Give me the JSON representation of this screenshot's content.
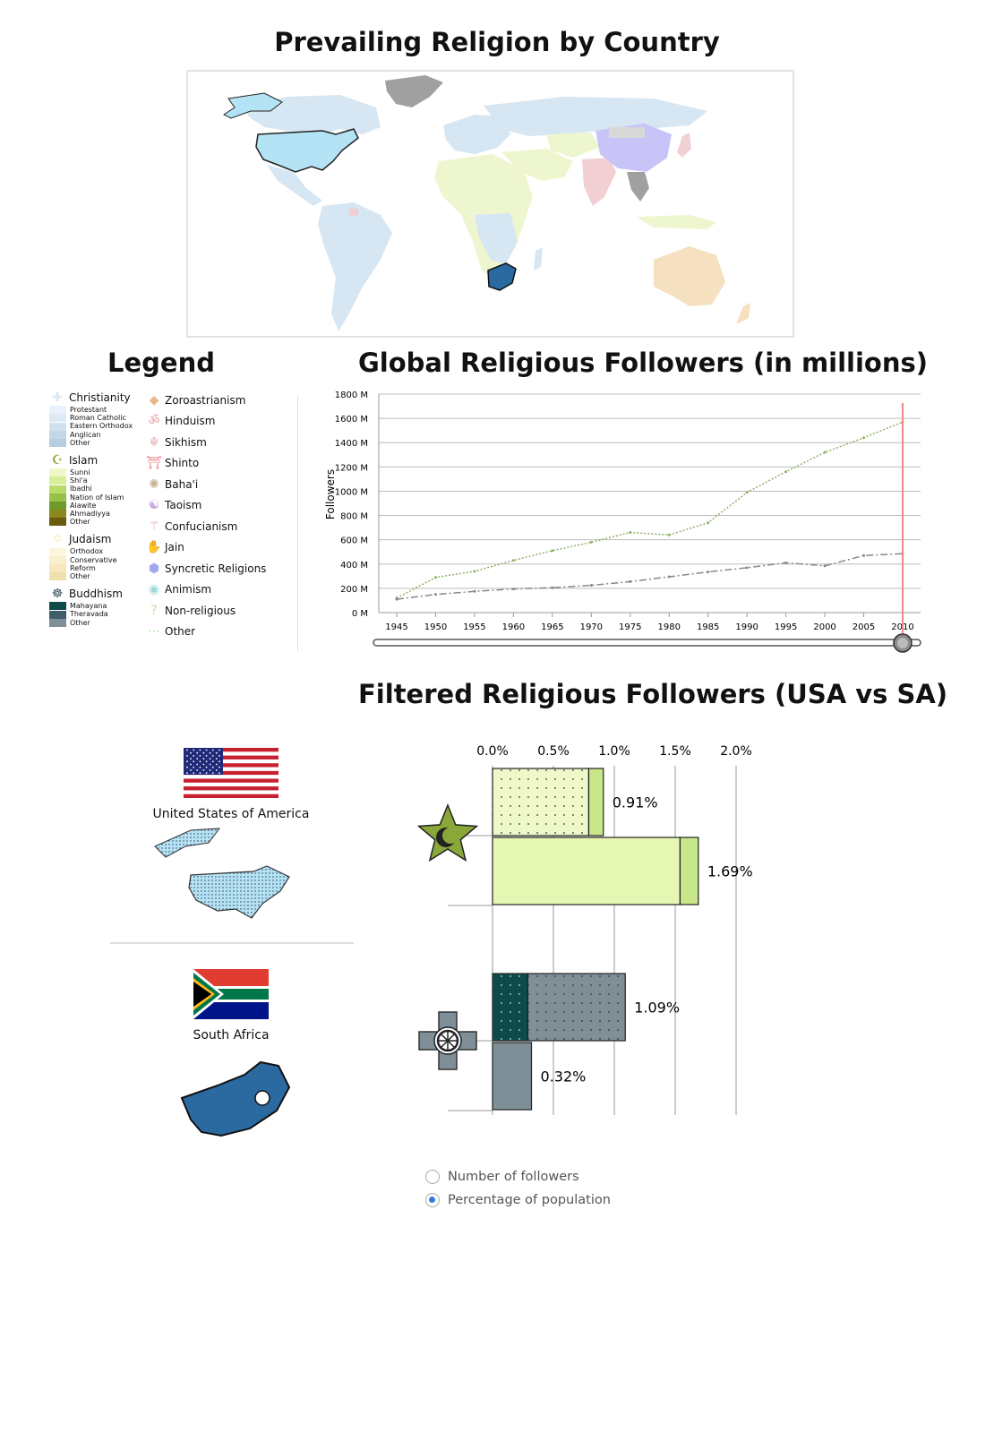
{
  "titles": {
    "map": "Prevailing Religion by Country",
    "legend": "Legend",
    "line_chart": "Global Religious Followers (in millions)",
    "filtered": "Filtered Religious Followers (USA vs SA)"
  },
  "legend": {
    "groups": [
      {
        "name": "Christianity",
        "icon": "cross-icon",
        "color": "#dbe7f2",
        "subs": [
          {
            "label": "Protestant",
            "color": "#eaf3fb"
          },
          {
            "label": "Roman Catholic",
            "color": "#dde9f4"
          },
          {
            "label": "Eastern Orthodox",
            "color": "#d0e0ee"
          },
          {
            "label": "Anglican",
            "color": "#c4d7e8"
          },
          {
            "label": "Other",
            "color": "#b8cde0"
          }
        ]
      },
      {
        "name": "Islam",
        "icon": "star-crescent-icon",
        "color": "#8aa83a",
        "subs": [
          {
            "label": "Sunni",
            "color": "#eef8c8"
          },
          {
            "label": "Shi'a",
            "color": "#d7ef9a"
          },
          {
            "label": "Ibadhi",
            "color": "#b8dc6a"
          },
          {
            "label": "Nation of Islam",
            "color": "#96c24a"
          },
          {
            "label": "Alawite",
            "color": "#6f9a2a"
          },
          {
            "label": "Ahmadiyya",
            "color": "#8a8a1a"
          },
          {
            "label": "Other",
            "color": "#6a5a10"
          }
        ]
      },
      {
        "name": "Judaism",
        "icon": "star-of-david-icon",
        "color": "#f6efc0",
        "subs": [
          {
            "label": "Orthodox",
            "color": "#fbf6dc"
          },
          {
            "label": "Conservative",
            "color": "#f8f0cd"
          },
          {
            "label": "Reform",
            "color": "#f4e8bc"
          },
          {
            "label": "Other",
            "color": "#f0e0ae"
          }
        ]
      },
      {
        "name": "Buddhism",
        "icon": "dharma-wheel-icon",
        "color": "#3a5560",
        "subs": [
          {
            "label": "Mahayana",
            "color": "#0f4a4a"
          },
          {
            "label": "Theravada",
            "color": "#3e5f68"
          },
          {
            "label": "Other",
            "color": "#7f8f98"
          }
        ]
      }
    ],
    "others": [
      {
        "name": "Zoroastrianism",
        "icon": "diamond-icon",
        "color": "#e8b88a"
      },
      {
        "name": "Hinduism",
        "icon": "om-icon",
        "color": "#e7a0a0"
      },
      {
        "name": "Sikhism",
        "icon": "khanda-icon",
        "color": "#e6b0b0"
      },
      {
        "name": "Shinto",
        "icon": "torii-icon",
        "color": "#f08080"
      },
      {
        "name": "Baha'i",
        "icon": "nine-star-icon",
        "color": "#c8b090"
      },
      {
        "name": "Taoism",
        "icon": "yin-yang-icon",
        "color": "#c8a8e0"
      },
      {
        "name": "Confucianism",
        "icon": "confucius-icon",
        "color": "#f0a0d0"
      },
      {
        "name": "Jain",
        "icon": "hand-icon",
        "color": "#f0a0a0"
      },
      {
        "name": "Syncretic Religions",
        "icon": "blend-icon",
        "color": "#a0a8f0"
      },
      {
        "name": "Animism",
        "icon": "eye-icon",
        "color": "#a0d8d8"
      },
      {
        "name": "Non-religious",
        "icon": "question-icon",
        "color": "#e8c8a0"
      },
      {
        "name": "Other",
        "icon": "dotted-swatch-icon",
        "color": "#a8dca0"
      }
    ]
  },
  "map": {
    "colors": {
      "christianity": "#d6e6f3",
      "islam": "#eef6cf",
      "buddhism": "#c8c4f7",
      "hinduism": "#f2cfd2",
      "nonreligious": "#f5e0bf",
      "other": "#a0a0a0",
      "usa": "#b3e3f4",
      "south_africa": "#2a6aa0"
    }
  },
  "chart_data": [
    {
      "type": "line",
      "title": "Global Religious Followers (in millions)",
      "xlabel": "",
      "ylabel": "Followers",
      "x": [
        1945,
        1950,
        1955,
        1960,
        1965,
        1970,
        1975,
        1980,
        1985,
        1990,
        1995,
        2000,
        2005,
        2010
      ],
      "ylim": [
        0,
        1800
      ],
      "yticks": [
        "0 M",
        "200 M",
        "400 M",
        "600 M",
        "800 M",
        "1000 M",
        "1200 M",
        "1400 M",
        "1600 M",
        "1800 M"
      ],
      "grid": true,
      "series": [
        {
          "style": "dotted",
          "color": "#8fb06a",
          "values": [
            120,
            290,
            340,
            430,
            510,
            580,
            660,
            640,
            740,
            990,
            1160,
            1320,
            1440,
            1570
          ]
        },
        {
          "style": "dash-dot",
          "color": "#888888",
          "values": [
            110,
            150,
            175,
            195,
            205,
            225,
            255,
            295,
            335,
            370,
            410,
            385,
            470,
            485
          ]
        }
      ],
      "selected_year": 2010,
      "slider_value": 2010
    },
    {
      "type": "bar",
      "title": "Filtered Religious Followers (USA vs SA)",
      "orientation": "horizontal",
      "xlim": [
        0,
        2.0
      ],
      "xticks": [
        "0.0%",
        "0.5%",
        "1.0%",
        "1.5%",
        "2.0%"
      ],
      "groups": [
        {
          "religion": "Islam",
          "icon": "star-crescent-icon",
          "bars": [
            {
              "country": "United States of America",
              "total": 0.91,
              "label": "0.91%",
              "segments": [
                {
                  "value": 0.79,
                  "color": "#eef8c8",
                  "dotted": true
                },
                {
                  "value": 0.12,
                  "color": "#c8e68a"
                }
              ]
            },
            {
              "country": "South Africa",
              "total": 1.69,
              "label": "1.69%",
              "segments": [
                {
                  "value": 1.54,
                  "color": "#e6f7b4"
                },
                {
                  "value": 0.15,
                  "color": "#c8e68a"
                }
              ]
            }
          ]
        },
        {
          "religion": "Buddhism",
          "icon": "dharma-wheel-icon",
          "bars": [
            {
              "country": "United States of America",
              "total": 1.09,
              "label": "1.09%",
              "segments": [
                {
                  "value": 0.29,
                  "color": "#0f4a4a",
                  "dotted": true
                },
                {
                  "value": 0.8,
                  "color": "#7f8f98",
                  "dotted": true
                }
              ]
            },
            {
              "country": "South Africa",
              "total": 0.32,
              "label": "0.32%",
              "segments": [
                {
                  "value": 0.32,
                  "color": "#7f8f98"
                }
              ]
            }
          ]
        }
      ]
    }
  ],
  "countries": [
    {
      "name": "United States of America",
      "flag": "usa-flag"
    },
    {
      "name": "South Africa",
      "flag": "south-africa-flag"
    }
  ],
  "radio": {
    "options": [
      {
        "label": "Number of followers",
        "selected": false
      },
      {
        "label": "Percentage of population",
        "selected": true
      }
    ]
  }
}
